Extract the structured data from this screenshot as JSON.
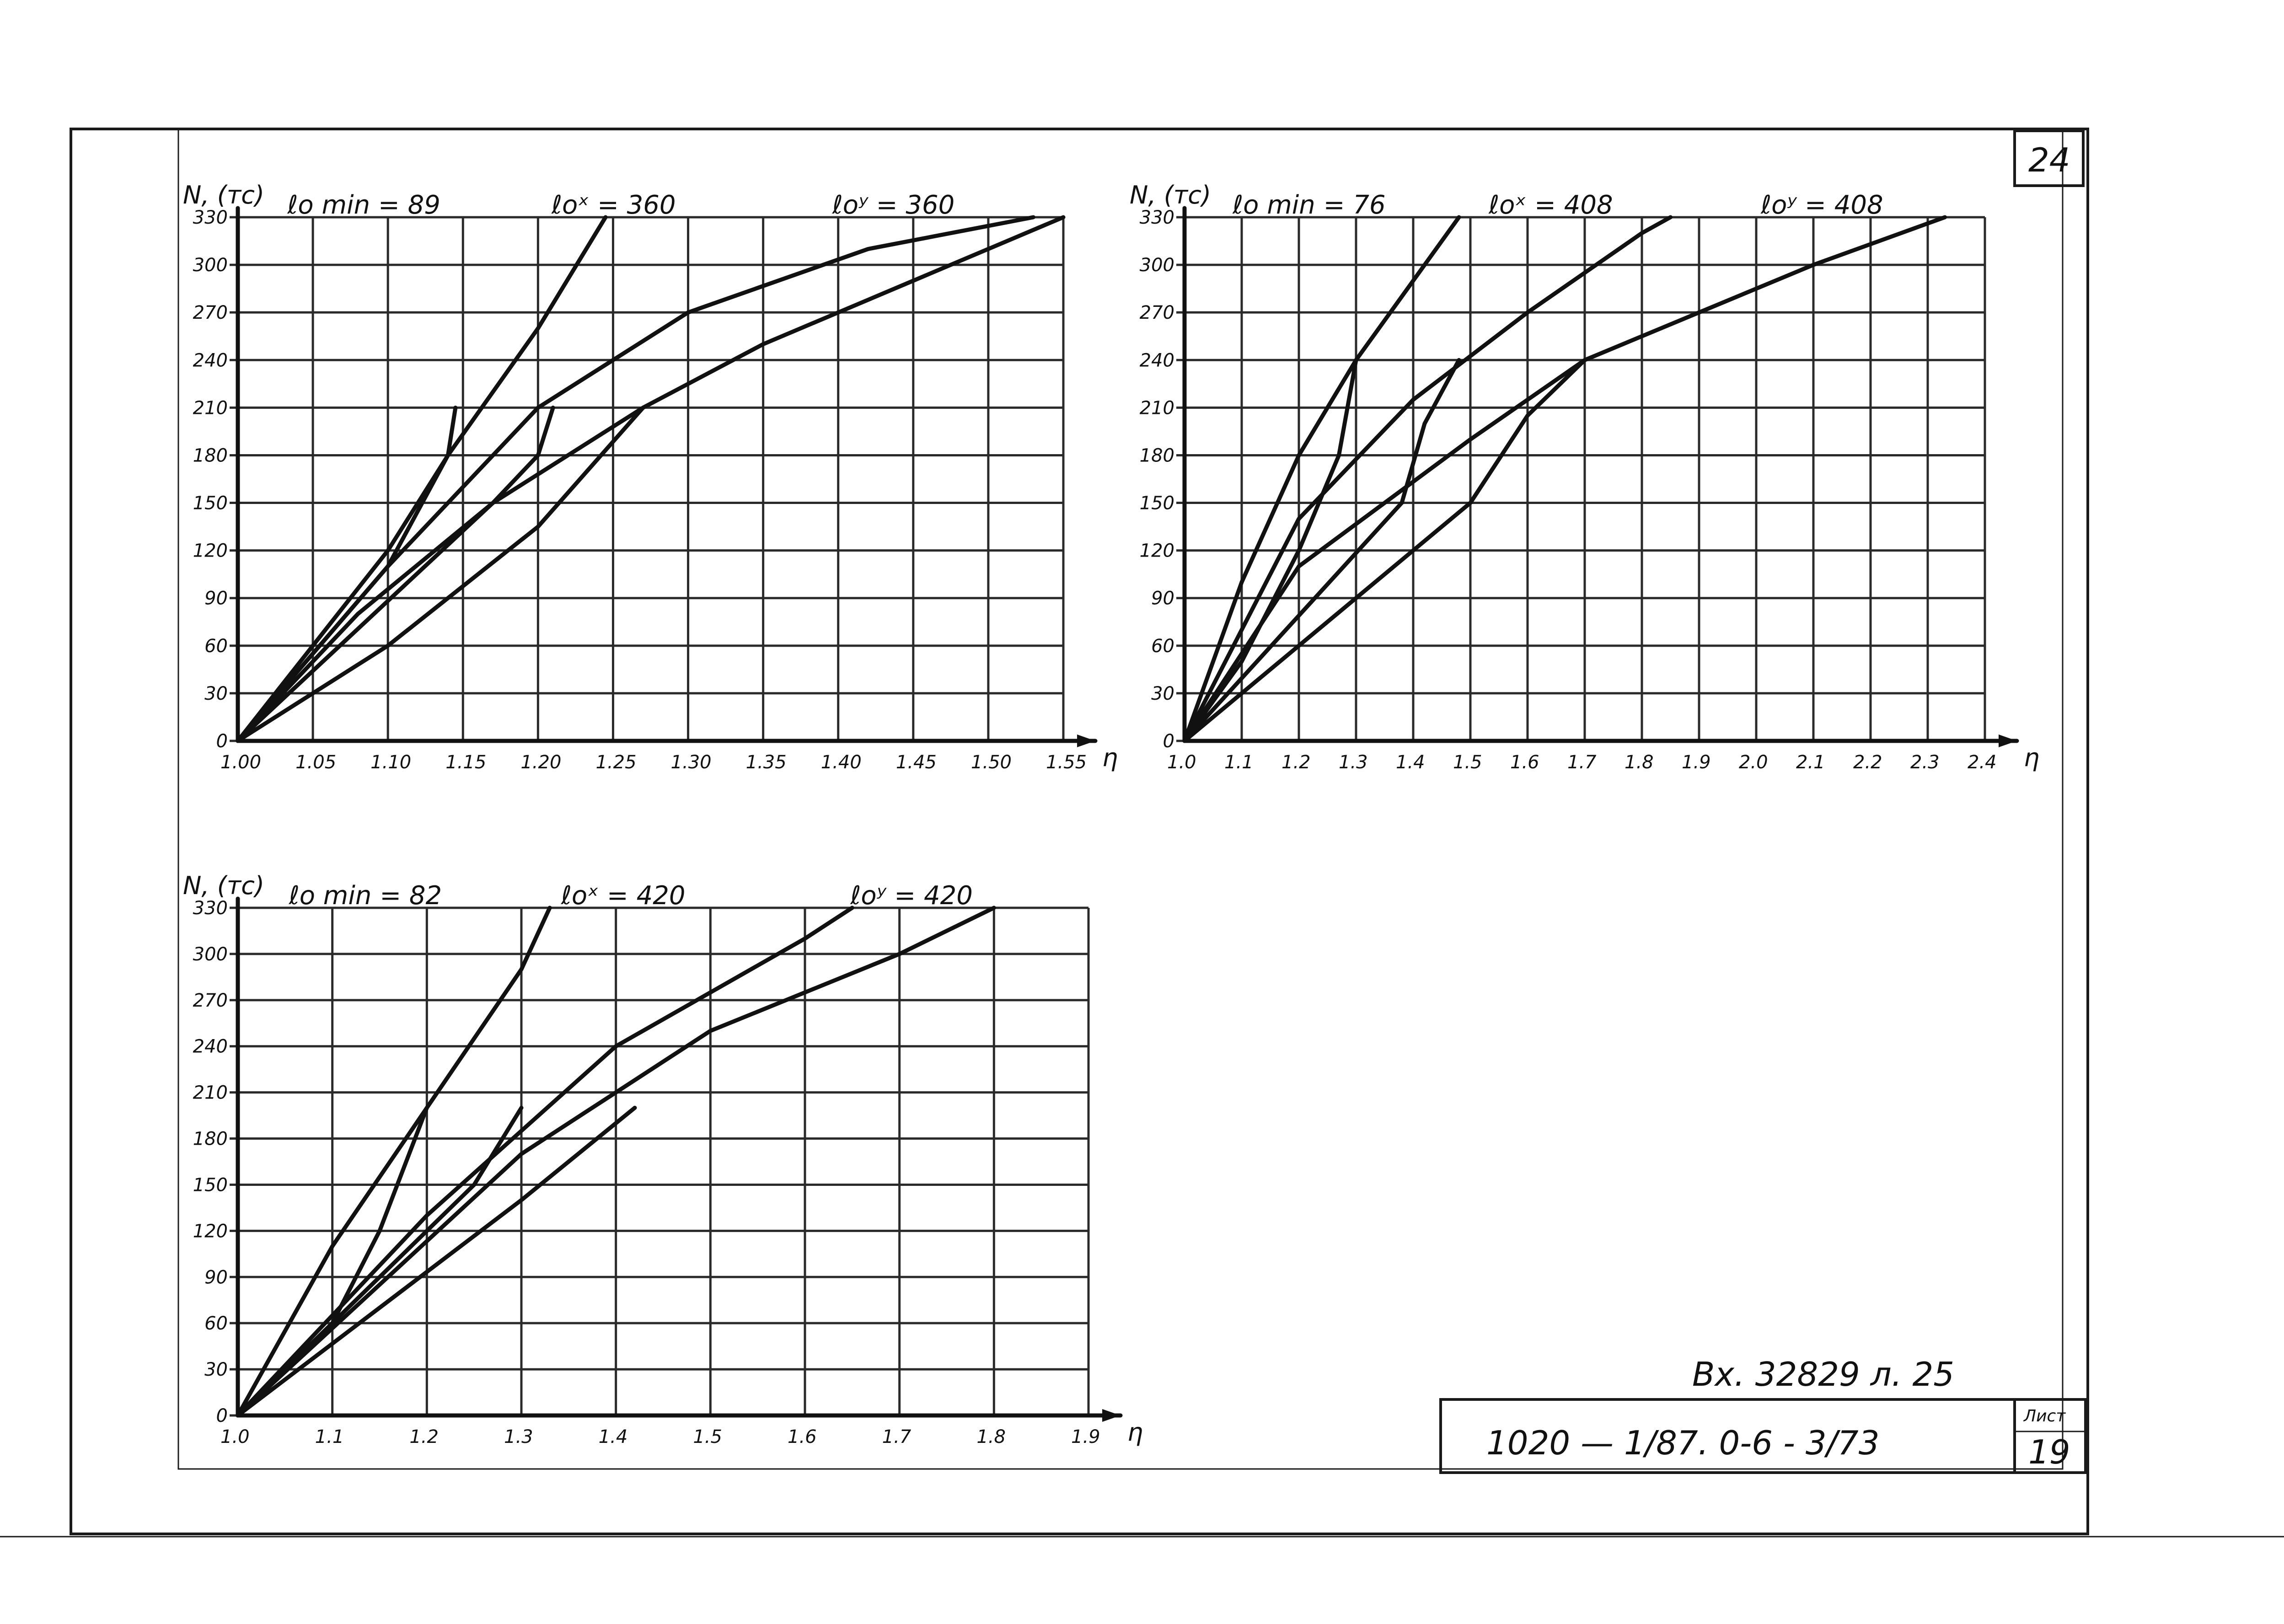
{
  "sheet": {
    "corner_number": "24",
    "note": "Вх. 32829 л. 25",
    "document_code": "1020 — 1/87. 0-6 - 3/73",
    "sheet_label": "Лист",
    "sheet_number": "19"
  },
  "colors": {
    "ink": "#111111",
    "paper": "#ffffff"
  },
  "chart_data": [
    {
      "type": "line",
      "ylabel": "N, (тс)",
      "xlabel": "η",
      "header": {
        "lmin": "ℓo min = 89",
        "lx": "ℓoˣ = 360",
        "ly": "ℓoʸ = 360"
      },
      "xlim": [
        1.0,
        1.55
      ],
      "ylim": [
        0,
        330
      ],
      "grid": true,
      "x_ticks": [
        1.0,
        1.05,
        1.1,
        1.15,
        1.2,
        1.25,
        1.3,
        1.35,
        1.4,
        1.45,
        1.5,
        1.55
      ],
      "x_tick_labels": [
        "1.00",
        "1.05",
        "1.10",
        "1.15",
        "1.20",
        "1.25",
        "1.30",
        "1.35",
        "1.40",
        "1.45",
        "1.50",
        "1.55"
      ],
      "y_ticks": [
        0,
        30,
        60,
        90,
        120,
        150,
        180,
        210,
        240,
        270,
        300,
        330
      ],
      "y_tick_labels": [
        "0",
        "30",
        "60",
        "90",
        "120",
        "150",
        "180",
        "210",
        "240",
        "270",
        "300",
        "330"
      ],
      "series": [
        {
          "points": [
            [
              1.0,
              0
            ],
            [
              1.05,
              60
            ],
            [
              1.1,
              120
            ],
            [
              1.14,
              180
            ],
            [
              1.2,
              260
            ],
            [
              1.245,
              330
            ]
          ]
        },
        {
          "points": [
            [
              1.0,
              0
            ],
            [
              1.1,
              110
            ],
            [
              1.2,
              210
            ],
            [
              1.3,
              270
            ],
            [
              1.42,
              310
            ],
            [
              1.53,
              330
            ]
          ]
        },
        {
          "points": [
            [
              1.0,
              0
            ],
            [
              1.08,
              80
            ],
            [
              1.17,
              150
            ],
            [
              1.27,
              210
            ],
            [
              1.35,
              250
            ],
            [
              1.45,
              290
            ],
            [
              1.55,
              330
            ]
          ]
        },
        {
          "points": [
            [
              1.0,
              0
            ],
            [
              1.1,
              60
            ],
            [
              1.2,
              135
            ],
            [
              1.27,
              210
            ]
          ]
        },
        {
          "points": [
            [
              1.0,
              0
            ],
            [
              1.1,
              110
            ],
            [
              1.14,
              180
            ],
            [
              1.145,
              210
            ]
          ]
        },
        {
          "points": [
            [
              1.0,
              0
            ],
            [
              1.17,
              150
            ],
            [
              1.2,
              180
            ],
            [
              1.21,
              210
            ]
          ]
        }
      ]
    },
    {
      "type": "line",
      "ylabel": "N, (тс)",
      "xlabel": "η",
      "header": {
        "lmin": "ℓo min = 76",
        "lx": "ℓoˣ = 408",
        "ly": "ℓoʸ = 408"
      },
      "xlim": [
        1.0,
        2.4
      ],
      "ylim": [
        0,
        330
      ],
      "grid": true,
      "x_ticks": [
        1.0,
        1.1,
        1.2,
        1.3,
        1.4,
        1.5,
        1.6,
        1.7,
        1.8,
        1.9,
        2.0,
        2.1,
        2.2,
        2.3,
        2.4
      ],
      "x_tick_labels": [
        "1.0",
        "1.1",
        "1.2",
        "1.3",
        "1.4",
        "1.5",
        "1.6",
        "1.7",
        "1.8",
        "1.9",
        "2.0",
        "2.1",
        "2.2",
        "2.3",
        "2.4"
      ],
      "y_ticks": [
        0,
        30,
        60,
        90,
        120,
        150,
        180,
        210,
        240,
        270,
        300,
        330
      ],
      "y_tick_labels": [
        "0",
        "30",
        "60",
        "90",
        "120",
        "150",
        "180",
        "210",
        "240",
        "270",
        "300",
        "330"
      ],
      "series": [
        {
          "points": [
            [
              1.0,
              0
            ],
            [
              1.1,
              100
            ],
            [
              1.2,
              180
            ],
            [
              1.3,
              240
            ],
            [
              1.4,
              290
            ],
            [
              1.48,
              330
            ]
          ]
        },
        {
          "points": [
            [
              1.0,
              0
            ],
            [
              1.2,
              140
            ],
            [
              1.4,
              215
            ],
            [
              1.6,
              270
            ],
            [
              1.8,
              320
            ],
            [
              1.85,
              330
            ]
          ]
        },
        {
          "points": [
            [
              1.0,
              0
            ],
            [
              1.2,
              110
            ],
            [
              1.5,
              190
            ],
            [
              1.7,
              240
            ],
            [
              1.9,
              270
            ],
            [
              2.1,
              300
            ],
            [
              2.33,
              330
            ]
          ]
        },
        {
          "points": [
            [
              1.0,
              0
            ],
            [
              1.2,
              60
            ],
            [
              1.4,
              120
            ],
            [
              1.5,
              150
            ],
            [
              1.6,
              205
            ],
            [
              1.7,
              240
            ]
          ]
        },
        {
          "points": [
            [
              1.0,
              0
            ],
            [
              1.1,
              50
            ],
            [
              1.2,
              120
            ],
            [
              1.27,
              180
            ],
            [
              1.3,
              240
            ]
          ]
        },
        {
          "points": [
            [
              1.0,
              0
            ],
            [
              1.38,
              150
            ],
            [
              1.42,
              200
            ],
            [
              1.48,
              240
            ]
          ]
        }
      ]
    },
    {
      "type": "line",
      "ylabel": "N, (тс)",
      "xlabel": "η",
      "header": {
        "lmin": "ℓo min = 82",
        "lx": "ℓoˣ = 420",
        "ly": "ℓoʸ = 420"
      },
      "xlim": [
        1.0,
        1.9
      ],
      "ylim": [
        0,
        330
      ],
      "grid": true,
      "x_ticks": [
        1.0,
        1.1,
        1.2,
        1.3,
        1.4,
        1.5,
        1.6,
        1.7,
        1.8,
        1.9
      ],
      "x_tick_labels": [
        "1.0",
        "1.1",
        "1.2",
        "1.3",
        "1.4",
        "1.5",
        "1.6",
        "1.7",
        "1.8",
        "1.9"
      ],
      "y_ticks": [
        0,
        30,
        60,
        90,
        120,
        150,
        180,
        210,
        240,
        270,
        300,
        330
      ],
      "y_tick_labels": [
        "0",
        "30",
        "60",
        "90",
        "120",
        "150",
        "180",
        "210",
        "240",
        "270",
        "300",
        "330"
      ],
      "series": [
        {
          "points": [
            [
              1.0,
              0
            ],
            [
              1.1,
              110
            ],
            [
              1.2,
              200
            ],
            [
              1.3,
              290
            ],
            [
              1.33,
              330
            ]
          ]
        },
        {
          "points": [
            [
              1.0,
              0
            ],
            [
              1.2,
              130
            ],
            [
              1.4,
              240
            ],
            [
              1.6,
              310
            ],
            [
              1.65,
              330
            ]
          ]
        },
        {
          "points": [
            [
              1.0,
              0
            ],
            [
              1.3,
              170
            ],
            [
              1.5,
              250
            ],
            [
              1.7,
              300
            ],
            [
              1.8,
              330
            ]
          ]
        },
        {
          "points": [
            [
              1.0,
              0
            ],
            [
              1.15,
              70
            ],
            [
              1.3,
              140
            ],
            [
              1.42,
              200
            ]
          ]
        },
        {
          "points": [
            [
              1.0,
              0
            ],
            [
              1.1,
              60
            ],
            [
              1.15,
              120
            ],
            [
              1.2,
              200
            ]
          ]
        },
        {
          "points": [
            [
              1.0,
              0
            ],
            [
              1.25,
              150
            ],
            [
              1.3,
              200
            ]
          ]
        }
      ]
    }
  ]
}
